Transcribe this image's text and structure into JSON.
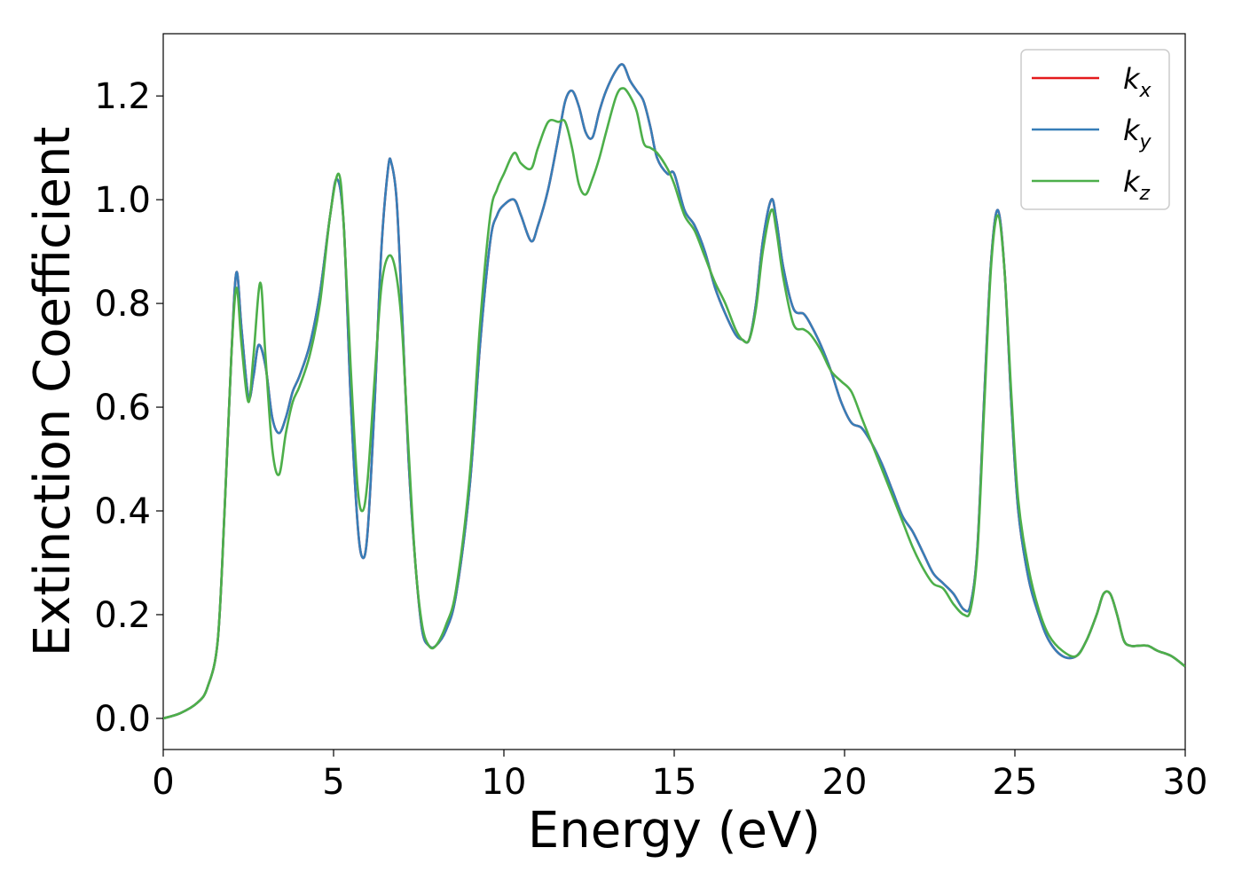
{
  "chart_data": {
    "type": "line",
    "title": "",
    "xlabel": "Energy (eV)",
    "ylabel": "Extinction Coefficient",
    "xlim": [
      0,
      30
    ],
    "ylim": [
      -0.06,
      1.32
    ],
    "xticks": [
      0,
      5,
      10,
      15,
      20,
      25,
      30
    ],
    "xtick_labels": [
      "0",
      "5",
      "10",
      "15",
      "20",
      "25",
      "30"
    ],
    "yticks": [
      0.0,
      0.2,
      0.4,
      0.6,
      0.8,
      1.0,
      1.2
    ],
    "ytick_labels": [
      "0.0",
      "0.2",
      "0.4",
      "0.6",
      "0.8",
      "1.0",
      "1.2"
    ],
    "grid": false,
    "legend_position": "top-right",
    "series": [
      {
        "name": "k_x",
        "legend_base": "k",
        "legend_sub": "x",
        "color": "#e41a1c",
        "x": [
          0,
          0.5,
          1.0,
          1.3,
          1.6,
          1.8,
          2.0,
          2.15,
          2.3,
          2.5,
          2.65,
          2.8,
          3.0,
          3.2,
          3.4,
          3.6,
          3.8,
          4.0,
          4.3,
          4.6,
          4.9,
          5.1,
          5.3,
          5.5,
          5.7,
          5.85,
          6.0,
          6.2,
          6.4,
          6.6,
          6.7,
          6.85,
          7.0,
          7.2,
          7.4,
          7.6,
          7.8,
          8.0,
          8.3,
          8.6,
          9.0,
          9.3,
          9.6,
          9.8,
          10.0,
          10.3,
          10.5,
          10.8,
          11.0,
          11.3,
          11.6,
          11.8,
          12.0,
          12.2,
          12.4,
          12.6,
          12.8,
          13.0,
          13.3,
          13.5,
          13.7,
          13.9,
          14.1,
          14.3,
          14.5,
          14.8,
          15.0,
          15.3,
          15.6,
          15.9,
          16.2,
          16.5,
          16.8,
          17.0,
          17.2,
          17.4,
          17.6,
          17.85,
          18.0,
          18.2,
          18.5,
          18.8,
          19.0,
          19.3,
          19.6,
          19.9,
          20.2,
          20.5,
          20.8,
          21.1,
          21.4,
          21.7,
          22.0,
          22.3,
          22.6,
          22.9,
          23.2,
          23.5,
          23.7,
          23.9,
          24.1,
          24.3,
          24.5,
          24.7,
          24.9,
          25.1,
          25.4,
          25.7,
          26.0,
          26.4,
          26.8,
          27.1,
          27.4,
          27.6,
          27.8,
          28.0,
          28.2,
          28.4,
          28.6,
          28.9,
          29.2,
          29.6,
          30.0
        ],
        "y": [
          0.0,
          0.01,
          0.03,
          0.06,
          0.15,
          0.4,
          0.7,
          0.86,
          0.75,
          0.62,
          0.66,
          0.72,
          0.68,
          0.58,
          0.55,
          0.58,
          0.63,
          0.66,
          0.72,
          0.82,
          0.97,
          1.04,
          0.95,
          0.62,
          0.38,
          0.31,
          0.36,
          0.6,
          0.9,
          1.06,
          1.07,
          1.0,
          0.8,
          0.5,
          0.3,
          0.17,
          0.14,
          0.14,
          0.17,
          0.24,
          0.45,
          0.72,
          0.92,
          0.97,
          0.99,
          1.0,
          0.97,
          0.92,
          0.95,
          1.02,
          1.12,
          1.19,
          1.21,
          1.18,
          1.13,
          1.12,
          1.17,
          1.21,
          1.25,
          1.26,
          1.23,
          1.21,
          1.19,
          1.14,
          1.08,
          1.05,
          1.05,
          0.98,
          0.95,
          0.9,
          0.83,
          0.78,
          0.74,
          0.73,
          0.73,
          0.8,
          0.92,
          1.0,
          0.96,
          0.87,
          0.79,
          0.78,
          0.76,
          0.72,
          0.67,
          0.61,
          0.57,
          0.56,
          0.53,
          0.49,
          0.44,
          0.39,
          0.36,
          0.32,
          0.28,
          0.26,
          0.24,
          0.21,
          0.22,
          0.33,
          0.62,
          0.88,
          0.98,
          0.86,
          0.6,
          0.4,
          0.27,
          0.2,
          0.15,
          0.12,
          0.12,
          0.15,
          0.2,
          0.24,
          0.24,
          0.2,
          0.15,
          0.14,
          0.14,
          0.14,
          0.13,
          0.12,
          0.1
        ]
      },
      {
        "name": "k_y",
        "legend_base": "k",
        "legend_sub": "y",
        "color": "#377eb8",
        "x": [
          0,
          0.5,
          1.0,
          1.3,
          1.6,
          1.8,
          2.0,
          2.15,
          2.3,
          2.5,
          2.65,
          2.8,
          3.0,
          3.2,
          3.4,
          3.6,
          3.8,
          4.0,
          4.3,
          4.6,
          4.9,
          5.1,
          5.3,
          5.5,
          5.7,
          5.85,
          6.0,
          6.2,
          6.4,
          6.6,
          6.7,
          6.85,
          7.0,
          7.2,
          7.4,
          7.6,
          7.8,
          8.0,
          8.3,
          8.6,
          9.0,
          9.3,
          9.6,
          9.8,
          10.0,
          10.3,
          10.5,
          10.8,
          11.0,
          11.3,
          11.6,
          11.8,
          12.0,
          12.2,
          12.4,
          12.6,
          12.8,
          13.0,
          13.3,
          13.5,
          13.7,
          13.9,
          14.1,
          14.3,
          14.5,
          14.8,
          15.0,
          15.3,
          15.6,
          15.9,
          16.2,
          16.5,
          16.8,
          17.0,
          17.2,
          17.4,
          17.6,
          17.85,
          18.0,
          18.2,
          18.5,
          18.8,
          19.0,
          19.3,
          19.6,
          19.9,
          20.2,
          20.5,
          20.8,
          21.1,
          21.4,
          21.7,
          22.0,
          22.3,
          22.6,
          22.9,
          23.2,
          23.5,
          23.7,
          23.9,
          24.1,
          24.3,
          24.5,
          24.7,
          24.9,
          25.1,
          25.4,
          25.7,
          26.0,
          26.4,
          26.8,
          27.1,
          27.4,
          27.6,
          27.8,
          28.0,
          28.2,
          28.4,
          28.6,
          28.9,
          29.2,
          29.6,
          30.0
        ],
        "y": [
          0.0,
          0.01,
          0.03,
          0.06,
          0.15,
          0.4,
          0.7,
          0.86,
          0.75,
          0.62,
          0.66,
          0.72,
          0.68,
          0.58,
          0.55,
          0.58,
          0.63,
          0.66,
          0.72,
          0.82,
          0.97,
          1.04,
          0.95,
          0.62,
          0.38,
          0.31,
          0.36,
          0.6,
          0.9,
          1.06,
          1.07,
          1.0,
          0.8,
          0.5,
          0.3,
          0.17,
          0.14,
          0.14,
          0.17,
          0.24,
          0.45,
          0.72,
          0.92,
          0.97,
          0.99,
          1.0,
          0.97,
          0.92,
          0.95,
          1.02,
          1.12,
          1.19,
          1.21,
          1.18,
          1.13,
          1.12,
          1.17,
          1.21,
          1.25,
          1.26,
          1.23,
          1.21,
          1.19,
          1.14,
          1.08,
          1.05,
          1.05,
          0.98,
          0.95,
          0.9,
          0.83,
          0.78,
          0.74,
          0.73,
          0.73,
          0.8,
          0.92,
          1.0,
          0.96,
          0.87,
          0.79,
          0.78,
          0.76,
          0.72,
          0.67,
          0.61,
          0.57,
          0.56,
          0.53,
          0.49,
          0.44,
          0.39,
          0.36,
          0.32,
          0.28,
          0.26,
          0.24,
          0.21,
          0.22,
          0.33,
          0.62,
          0.88,
          0.98,
          0.86,
          0.6,
          0.4,
          0.27,
          0.2,
          0.15,
          0.12,
          0.12,
          0.15,
          0.2,
          0.24,
          0.24,
          0.2,
          0.15,
          0.14,
          0.14,
          0.14,
          0.13,
          0.12,
          0.1
        ]
      },
      {
        "name": "k_z",
        "legend_base": "k",
        "legend_sub": "z",
        "color": "#4daf4a",
        "x": [
          0,
          0.5,
          1.0,
          1.3,
          1.6,
          1.8,
          2.0,
          2.15,
          2.3,
          2.5,
          2.65,
          2.85,
          3.0,
          3.2,
          3.4,
          3.6,
          3.8,
          4.0,
          4.3,
          4.6,
          4.9,
          5.15,
          5.3,
          5.5,
          5.7,
          5.85,
          6.0,
          6.2,
          6.4,
          6.6,
          6.8,
          7.0,
          7.2,
          7.4,
          7.6,
          7.8,
          8.0,
          8.3,
          8.6,
          9.0,
          9.3,
          9.6,
          9.8,
          10.0,
          10.3,
          10.5,
          10.8,
          11.0,
          11.3,
          11.6,
          11.8,
          12.0,
          12.2,
          12.4,
          12.6,
          12.8,
          13.0,
          13.3,
          13.5,
          13.7,
          13.9,
          14.1,
          14.3,
          14.5,
          14.8,
          15.0,
          15.3,
          15.6,
          15.9,
          16.2,
          16.5,
          16.8,
          17.0,
          17.2,
          17.4,
          17.6,
          17.85,
          18.0,
          18.2,
          18.5,
          18.8,
          19.0,
          19.3,
          19.6,
          19.9,
          20.2,
          20.5,
          20.8,
          21.1,
          21.4,
          21.7,
          22.0,
          22.3,
          22.6,
          22.9,
          23.2,
          23.5,
          23.7,
          23.9,
          24.1,
          24.3,
          24.5,
          24.7,
          24.9,
          25.1,
          25.4,
          25.7,
          26.0,
          26.4,
          26.8,
          27.1,
          27.4,
          27.6,
          27.8,
          28.0,
          28.2,
          28.4,
          28.6,
          28.9,
          29.2,
          29.6,
          30.0
        ],
        "y": [
          0.0,
          0.01,
          0.03,
          0.06,
          0.15,
          0.4,
          0.7,
          0.83,
          0.72,
          0.61,
          0.7,
          0.84,
          0.7,
          0.52,
          0.47,
          0.55,
          0.61,
          0.64,
          0.7,
          0.8,
          0.97,
          1.05,
          0.95,
          0.68,
          0.45,
          0.4,
          0.46,
          0.65,
          0.83,
          0.89,
          0.87,
          0.76,
          0.52,
          0.3,
          0.18,
          0.14,
          0.14,
          0.18,
          0.25,
          0.47,
          0.76,
          0.97,
          1.02,
          1.05,
          1.09,
          1.07,
          1.06,
          1.1,
          1.15,
          1.15,
          1.15,
          1.1,
          1.03,
          1.01,
          1.04,
          1.08,
          1.13,
          1.2,
          1.215,
          1.2,
          1.17,
          1.11,
          1.1,
          1.09,
          1.06,
          1.03,
          0.97,
          0.94,
          0.89,
          0.84,
          0.8,
          0.75,
          0.73,
          0.73,
          0.79,
          0.9,
          0.98,
          0.94,
          0.85,
          0.76,
          0.75,
          0.74,
          0.71,
          0.67,
          0.65,
          0.63,
          0.58,
          0.53,
          0.48,
          0.43,
          0.38,
          0.33,
          0.29,
          0.26,
          0.25,
          0.22,
          0.2,
          0.21,
          0.32,
          0.6,
          0.87,
          0.97,
          0.86,
          0.62,
          0.42,
          0.29,
          0.21,
          0.16,
          0.13,
          0.12,
          0.15,
          0.2,
          0.24,
          0.24,
          0.2,
          0.15,
          0.14,
          0.14,
          0.14,
          0.13,
          0.12,
          0.1
        ]
      }
    ]
  }
}
